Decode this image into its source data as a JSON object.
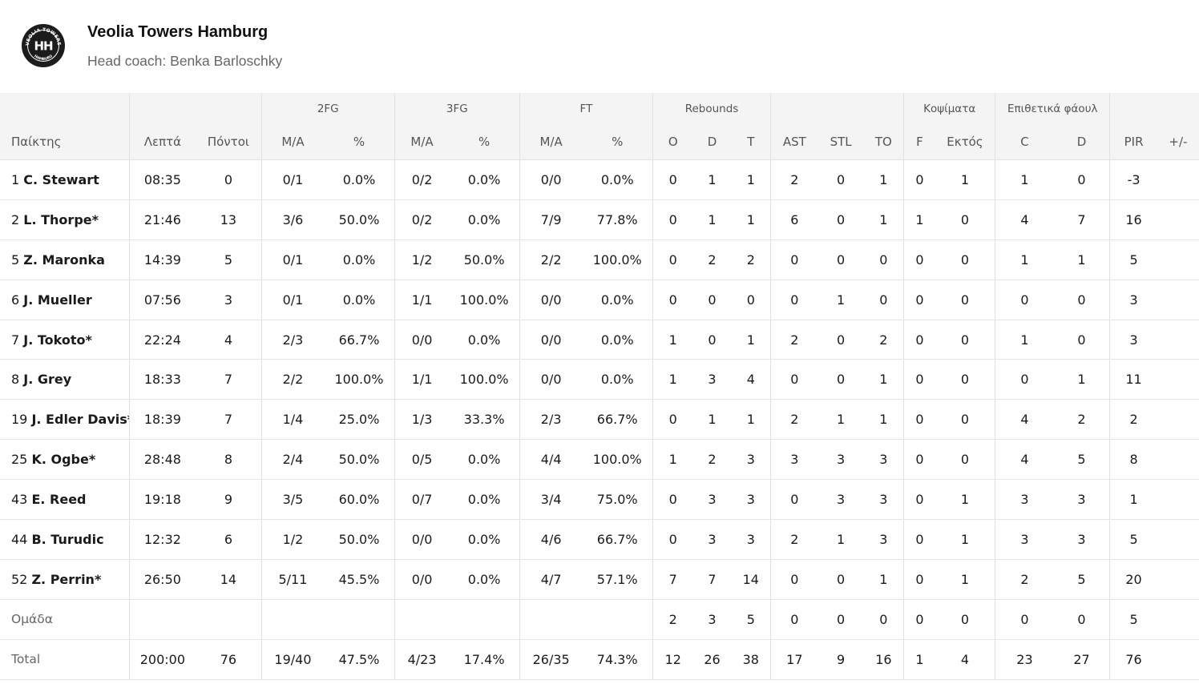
{
  "team": {
    "name": "Veolia Towers Hamburg",
    "coach_label": "Head coach:",
    "coach_name": "Benka Barloschky",
    "logo": {
      "top_text": "VEOLIA TOWERS",
      "bottom_text": "HAMBURG",
      "monogram": "HH"
    }
  },
  "group_headers": {
    "fg2": "2FG",
    "fg3": "3FG",
    "ft": "FT",
    "rebounds": "Rebounds",
    "blocks": "Κοψίματα",
    "fouls": "Επιθετικά φάουλ"
  },
  "columns": [
    "Παίκτης",
    "Λεπτά",
    "Πόντοι",
    "M/A",
    "%",
    "M/A",
    "%",
    "M/A",
    "%",
    "O",
    "D",
    "T",
    "AST",
    "STL",
    "TO",
    "F",
    "Εκτός",
    "C",
    "D",
    "PIR",
    "+/-"
  ],
  "players": [
    {
      "num": "1",
      "name": "C. Stewart",
      "values": [
        "08:35",
        "0",
        "0/1",
        "0.0%",
        "0/2",
        "0.0%",
        "0/0",
        "0.0%",
        "0",
        "1",
        "1",
        "2",
        "0",
        "1",
        "0",
        "1",
        "1",
        "0",
        "-3",
        ""
      ]
    },
    {
      "num": "2",
      "name": "L. Thorpe*",
      "values": [
        "21:46",
        "13",
        "3/6",
        "50.0%",
        "0/2",
        "0.0%",
        "7/9",
        "77.8%",
        "0",
        "1",
        "1",
        "6",
        "0",
        "1",
        "1",
        "0",
        "4",
        "7",
        "16",
        ""
      ]
    },
    {
      "num": "5",
      "name": "Z. Maronka",
      "values": [
        "14:39",
        "5",
        "0/1",
        "0.0%",
        "1/2",
        "50.0%",
        "2/2",
        "100.0%",
        "0",
        "2",
        "2",
        "0",
        "0",
        "0",
        "0",
        "0",
        "1",
        "1",
        "5",
        ""
      ]
    },
    {
      "num": "6",
      "name": "J. Mueller",
      "values": [
        "07:56",
        "3",
        "0/1",
        "0.0%",
        "1/1",
        "100.0%",
        "0/0",
        "0.0%",
        "0",
        "0",
        "0",
        "0",
        "1",
        "0",
        "0",
        "0",
        "0",
        "0",
        "3",
        ""
      ]
    },
    {
      "num": "7",
      "name": "J. Tokoto*",
      "values": [
        "22:24",
        "4",
        "2/3",
        "66.7%",
        "0/0",
        "0.0%",
        "0/0",
        "0.0%",
        "1",
        "0",
        "1",
        "2",
        "0",
        "2",
        "0",
        "0",
        "1",
        "0",
        "3",
        ""
      ]
    },
    {
      "num": "8",
      "name": "J. Grey",
      "values": [
        "18:33",
        "7",
        "2/2",
        "100.0%",
        "1/1",
        "100.0%",
        "0/0",
        "0.0%",
        "1",
        "3",
        "4",
        "0",
        "0",
        "1",
        "0",
        "0",
        "0",
        "1",
        "11",
        ""
      ]
    },
    {
      "num": "19",
      "name": "J. Edler Davis*",
      "values": [
        "18:39",
        "7",
        "1/4",
        "25.0%",
        "1/3",
        "33.3%",
        "2/3",
        "66.7%",
        "0",
        "1",
        "1",
        "2",
        "1",
        "1",
        "0",
        "0",
        "4",
        "2",
        "2",
        ""
      ]
    },
    {
      "num": "25",
      "name": "K. Ogbe*",
      "values": [
        "28:48",
        "8",
        "2/4",
        "50.0%",
        "0/5",
        "0.0%",
        "4/4",
        "100.0%",
        "1",
        "2",
        "3",
        "3",
        "3",
        "3",
        "0",
        "0",
        "4",
        "5",
        "8",
        ""
      ]
    },
    {
      "num": "43",
      "name": "E. Reed",
      "values": [
        "19:18",
        "9",
        "3/5",
        "60.0%",
        "0/7",
        "0.0%",
        "3/4",
        "75.0%",
        "0",
        "3",
        "3",
        "0",
        "3",
        "3",
        "0",
        "1",
        "3",
        "3",
        "1",
        ""
      ]
    },
    {
      "num": "44",
      "name": "B. Turudic",
      "values": [
        "12:32",
        "6",
        "1/2",
        "50.0%",
        "0/0",
        "0.0%",
        "4/6",
        "66.7%",
        "0",
        "3",
        "3",
        "2",
        "1",
        "3",
        "0",
        "1",
        "3",
        "3",
        "5",
        ""
      ]
    },
    {
      "num": "52",
      "name": "Z. Perrin*",
      "values": [
        "26:50",
        "14",
        "5/11",
        "45.5%",
        "0/0",
        "0.0%",
        "4/7",
        "57.1%",
        "7",
        "7",
        "14",
        "0",
        "0",
        "1",
        "0",
        "1",
        "2",
        "5",
        "20",
        ""
      ]
    }
  ],
  "team_row": {
    "label": "Ομάδα",
    "values": [
      "",
      "",
      "",
      "",
      "",
      "",
      "",
      "",
      "2",
      "3",
      "5",
      "0",
      "0",
      "0",
      "0",
      "0",
      "0",
      "0",
      "5",
      ""
    ]
  },
  "total_row": {
    "label": "Total",
    "values": [
      "200:00",
      "76",
      "19/40",
      "47.5%",
      "4/23",
      "17.4%",
      "26/35",
      "74.3%",
      "12",
      "26",
      "38",
      "17",
      "9",
      "16",
      "1",
      "4",
      "23",
      "27",
      "76",
      ""
    ]
  },
  "colors": {
    "header_bg": "#f4f4f4",
    "logo_bg": "#1c1c1c",
    "border": "#e2e2e2"
  }
}
